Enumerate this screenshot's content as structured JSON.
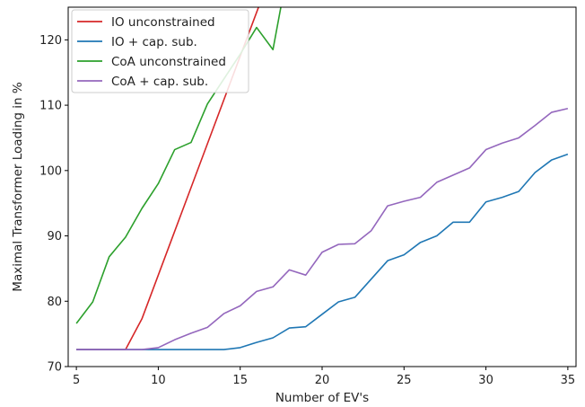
{
  "chart_data": {
    "type": "line",
    "xlabel": "Number of EV's",
    "ylabel": "Maximal Transformer Loading in %",
    "xlim": [
      4.5,
      35.5
    ],
    "ylim": [
      70,
      125
    ],
    "xticks": [
      "5",
      "10",
      "15",
      "20",
      "25",
      "30",
      "35"
    ],
    "yticks": [
      "70",
      "80",
      "90",
      "100",
      "110",
      "120"
    ],
    "grid": false,
    "legend_position": "top-left",
    "series": [
      {
        "name": "IO unconstrained",
        "color": "#d62728",
        "x": [
          5,
          6,
          7,
          8,
          9,
          10,
          11,
          12,
          13,
          14,
          15,
          16,
          17
        ],
        "y": [
          72.6,
          72.6,
          72.6,
          72.6,
          77.3,
          84.0,
          90.7,
          97.4,
          104.1,
          110.8,
          117.5,
          124.2,
          130.9
        ]
      },
      {
        "name": "IO + cap. sub.",
        "color": "#1f77b4",
        "x": [
          5,
          6,
          7,
          8,
          9,
          10,
          11,
          12,
          13,
          14,
          15,
          16,
          17,
          18,
          19,
          20,
          21,
          22,
          23,
          24,
          25,
          26,
          27,
          28,
          29,
          30,
          31,
          32,
          33,
          34,
          35
        ],
        "y": [
          72.6,
          72.6,
          72.6,
          72.6,
          72.6,
          72.6,
          72.6,
          72.6,
          72.6,
          72.6,
          72.9,
          73.7,
          74.4,
          75.9,
          76.1,
          78.0,
          79.9,
          80.6,
          83.4,
          86.2,
          87.1,
          89.0,
          90.0,
          92.1,
          92.1,
          95.2,
          95.9,
          96.8,
          99.7,
          101.6,
          102.5
        ]
      },
      {
        "name": "CoA unconstrained",
        "color": "#2ca02c",
        "x": [
          5,
          6,
          7,
          8,
          9,
          10,
          11,
          12,
          13,
          14,
          15,
          16,
          17,
          18
        ],
        "y": [
          76.6,
          79.9,
          86.8,
          89.8,
          94.2,
          98.0,
          103.2,
          104.3,
          110.2,
          114.0,
          117.8,
          121.9,
          118.5,
          132.0
        ]
      },
      {
        "name": "CoA + cap. sub.",
        "color": "#9467bd",
        "x": [
          5,
          6,
          7,
          8,
          9,
          10,
          11,
          12,
          13,
          14,
          15,
          16,
          17,
          18,
          19,
          20,
          21,
          22,
          23,
          24,
          25,
          26,
          27,
          28,
          29,
          30,
          31,
          32,
          33,
          34,
          35
        ],
        "y": [
          72.6,
          72.6,
          72.6,
          72.6,
          72.6,
          72.9,
          74.1,
          75.1,
          76.0,
          78.1,
          79.3,
          81.5,
          82.2,
          84.8,
          84.0,
          87.5,
          88.7,
          88.8,
          90.8,
          94.6,
          95.3,
          95.9,
          98.2,
          99.3,
          100.4,
          103.2,
          104.2,
          105.0,
          106.9,
          108.9,
          109.5
        ]
      }
    ]
  }
}
